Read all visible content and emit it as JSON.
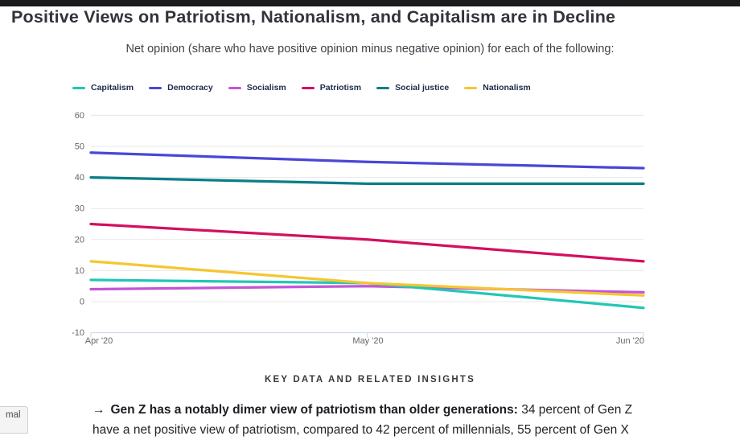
{
  "page": {
    "title": "Positive Views on Patriotism, Nationalism, and Capitalism are in Decline",
    "subtitle": "Net opinion (share who have positive opinion minus negative opinion) for each of the following:",
    "section_heading": "KEY DATA AND RELATED INSIGHTS",
    "insight": {
      "arrow": "→",
      "bold": "Gen Z has a notably dimer view of patriotism than older generations:",
      "regular": "34 percent of Gen Z",
      "continuation_clipped": "have a net positive view of patriotism, compared to 42 percent of millennials, 55 percent of Gen X"
    },
    "status_bubble": "mal"
  },
  "chart_data": {
    "type": "line",
    "x": [
      "Apr '20",
      "May '20",
      "Jun '20"
    ],
    "series": [
      {
        "name": "Capitalism",
        "color": "#21c7b5",
        "values": [
          7,
          6,
          -2
        ]
      },
      {
        "name": "Democracy",
        "color": "#4a47d5",
        "values": [
          48,
          45,
          43
        ]
      },
      {
        "name": "Socialism",
        "color": "#c256d4",
        "values": [
          4,
          5,
          3
        ]
      },
      {
        "name": "Patriotism",
        "color": "#d40f5e",
        "values": [
          25,
          20,
          13
        ]
      },
      {
        "name": "Social justice",
        "color": "#0b7e87",
        "values": [
          40,
          38,
          38
        ]
      },
      {
        "name": "Nationalism",
        "color": "#f5c631",
        "values": [
          13,
          6,
          2
        ]
      }
    ],
    "ylim": [
      -10,
      60
    ],
    "ytick_step": 10,
    "grid": true,
    "legend_position": "top",
    "grid_color": "#e7e7e7",
    "axis_line_color": "#ccd6eb",
    "tick_label_color": "#666666"
  }
}
